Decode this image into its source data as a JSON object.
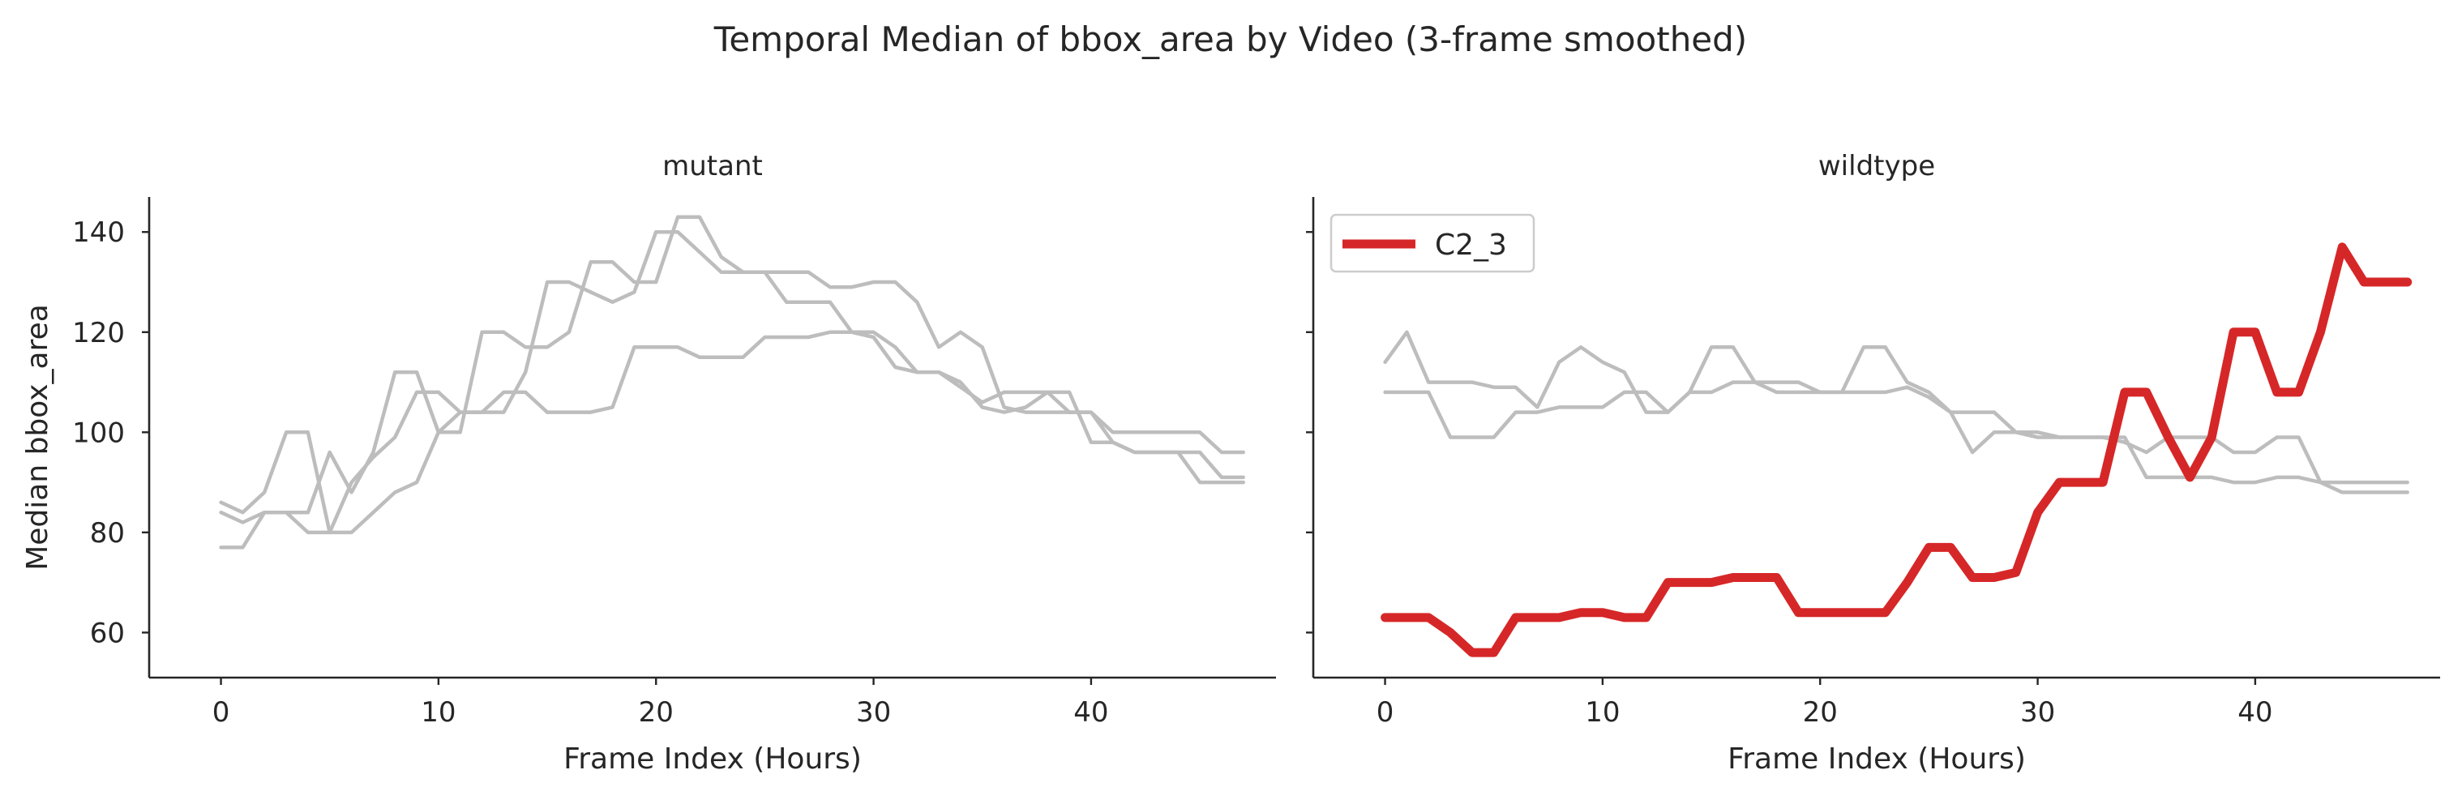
{
  "figure": {
    "title": "Temporal Median of bbox_area by Video (3-frame smoothed)"
  },
  "colors": {
    "background_series": "#bdbdbd",
    "highlight_series": "#d62728",
    "axis": "#262626"
  },
  "chart_data": [
    {
      "type": "line",
      "title": "mutant",
      "xlabel": "Frame Index (Hours)",
      "ylabel": "Median bbox_area",
      "xlim": [
        -3.3,
        48.5
      ],
      "ylim": [
        51,
        147
      ],
      "xticks": [
        0,
        10,
        20,
        30,
        40
      ],
      "yticks": [
        60,
        80,
        100,
        120,
        140
      ],
      "grid": false,
      "legend": null,
      "x": [
        0,
        1,
        2,
        3,
        4,
        5,
        6,
        7,
        8,
        9,
        10,
        11,
        12,
        13,
        14,
        15,
        16,
        17,
        18,
        19,
        20,
        21,
        22,
        23,
        24,
        25,
        26,
        27,
        28,
        29,
        30,
        31,
        32,
        33,
        34,
        35,
        36,
        37,
        38,
        39,
        40,
        41,
        42,
        43,
        44,
        45,
        46,
        47
      ],
      "series": [
        {
          "highlight": false,
          "values": [
            86,
            84,
            88,
            100,
            100,
            80,
            80,
            84,
            88,
            90,
            100,
            104,
            104,
            104,
            112,
            130,
            130,
            128,
            126,
            128,
            140,
            140,
            136,
            132,
            132,
            132,
            132,
            132,
            129,
            129,
            130,
            130,
            126,
            117,
            120,
            117,
            105,
            104,
            104,
            104,
            104,
            100,
            100,
            100,
            100,
            100,
            96,
            96
          ]
        },
        {
          "highlight": false,
          "values": [
            77,
            77,
            84,
            84,
            84,
            96,
            88,
            96,
            112,
            112,
            100,
            100,
            120,
            120,
            117,
            117,
            120,
            134,
            134,
            130,
            130,
            143,
            143,
            135,
            132,
            132,
            126,
            126,
            126,
            120,
            120,
            117,
            112,
            112,
            110,
            105,
            104,
            105,
            108,
            108,
            98,
            98,
            96,
            96,
            96,
            90,
            90,
            90
          ]
        },
        {
          "highlight": false,
          "values": [
            84,
            82,
            84,
            84,
            80,
            80,
            90,
            95,
            99,
            108,
            108,
            104,
            104,
            108,
            108,
            104,
            104,
            104,
            105,
            117,
            117,
            117,
            115,
            115,
            115,
            119,
            119,
            119,
            120,
            120,
            119,
            113,
            112,
            112,
            109,
            106,
            108,
            108,
            108,
            104,
            104,
            98,
            96,
            96,
            96,
            96,
            91,
            91
          ]
        }
      ]
    },
    {
      "type": "line",
      "title": "wildtype",
      "xlabel": "Frame Index (Hours)",
      "ylabel": "",
      "xlim": [
        -3.3,
        48.5
      ],
      "ylim": [
        51,
        147
      ],
      "xticks": [
        0,
        10,
        20,
        30,
        40
      ],
      "yticks": [
        60,
        80,
        100,
        120,
        140
      ],
      "grid": false,
      "legend": "top-left",
      "x": [
        0,
        1,
        2,
        3,
        4,
        5,
        6,
        7,
        8,
        9,
        10,
        11,
        12,
        13,
        14,
        15,
        16,
        17,
        18,
        19,
        20,
        21,
        22,
        23,
        24,
        25,
        26,
        27,
        28,
        29,
        30,
        31,
        32,
        33,
        34,
        35,
        36,
        37,
        38,
        39,
        40,
        41,
        42,
        43,
        44,
        45,
        46,
        47
      ],
      "series": [
        {
          "highlight": false,
          "values": [
            114,
            120,
            110,
            110,
            110,
            109,
            109,
            105,
            114,
            117,
            114,
            112,
            104,
            104,
            108,
            117,
            117,
            110,
            110,
            110,
            108,
            108,
            117,
            117,
            110,
            108,
            104,
            104,
            104,
            100,
            100,
            99,
            99,
            99,
            98,
            96,
            99,
            99,
            99,
            96,
            96,
            99,
            99,
            90,
            90,
            90,
            90,
            90
          ]
        },
        {
          "highlight": false,
          "values": [
            108,
            108,
            108,
            99,
            99,
            99,
            104,
            104,
            105,
            105,
            105,
            108,
            108,
            104,
            108,
            108,
            110,
            110,
            108,
            108,
            108,
            108,
            108,
            108,
            109,
            107,
            104,
            96,
            100,
            100,
            99,
            99,
            99,
            99,
            99,
            91,
            91,
            91,
            91,
            90,
            90,
            91,
            91,
            90,
            88,
            88,
            88,
            88
          ]
        },
        {
          "name": "C2_3",
          "highlight": true,
          "values": [
            63,
            63,
            63,
            60,
            56,
            56,
            63,
            63,
            63,
            64,
            64,
            63,
            63,
            70,
            70,
            70,
            71,
            71,
            71,
            64,
            64,
            64,
            64,
            64,
            70,
            77,
            77,
            71,
            71,
            72,
            84,
            90,
            90,
            90,
            108,
            108,
            99,
            91,
            99,
            120,
            120,
            108,
            108,
            120,
            137,
            130,
            130,
            130
          ]
        }
      ]
    }
  ]
}
